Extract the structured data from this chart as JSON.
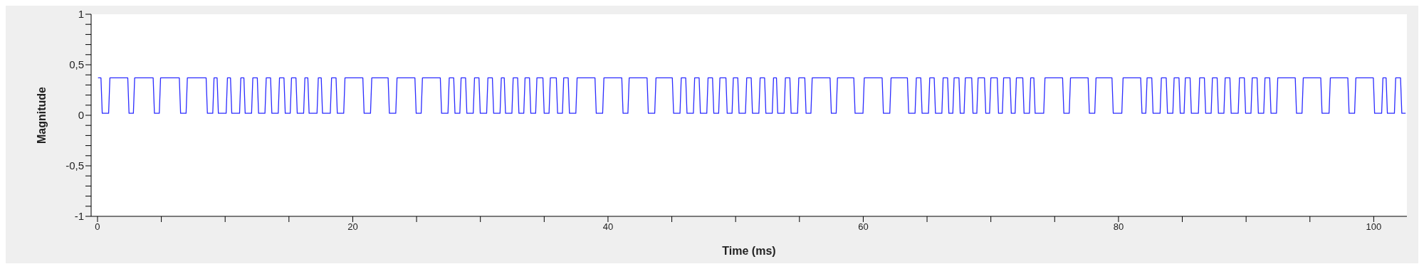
{
  "chart_data": {
    "type": "line",
    "xlabel": "Time (ms)",
    "ylabel": "Magnitude",
    "xlim": [
      -0.5,
      102.6
    ],
    "ylim": [
      -1,
      1
    ],
    "xticks": [
      0,
      {
        "value": 5,
        "label": null
      },
      {
        "value": 10,
        "label": null
      },
      {
        "value": 15,
        "label": null
      },
      20,
      {
        "value": 25,
        "label": null
      },
      {
        "value": 30,
        "label": null
      },
      {
        "value": 35,
        "label": null
      },
      40,
      {
        "value": 45,
        "label": null
      },
      {
        "value": 50,
        "label": null
      },
      {
        "value": 55,
        "label": null
      },
      60,
      {
        "value": 65,
        "label": null
      },
      {
        "value": 70,
        "label": null
      },
      {
        "value": 75,
        "label": null
      },
      80,
      {
        "value": 85,
        "label": null
      },
      {
        "value": 90,
        "label": null
      },
      {
        "value": 95,
        "label": null
      },
      100
    ],
    "yticks": [
      -1,
      {
        "value": -0.9,
        "label": null
      },
      {
        "value": -0.8,
        "label": null
      },
      {
        "value": -0.7,
        "label": null
      },
      {
        "value": -0.6,
        "label": null
      },
      {
        "value": -0.5,
        "label": "-0,5"
      },
      {
        "value": -0.4,
        "label": null
      },
      {
        "value": -0.3,
        "label": null
      },
      {
        "value": -0.2,
        "label": null
      },
      {
        "value": -0.1,
        "label": null
      },
      0,
      {
        "value": 0.1,
        "label": null
      },
      {
        "value": 0.2,
        "label": null
      },
      {
        "value": 0.3,
        "label": null
      },
      {
        "value": 0.4,
        "label": null
      },
      {
        "value": 0.5,
        "label": "0,5"
      },
      {
        "value": 0.6,
        "label": null
      },
      {
        "value": 0.7,
        "label": null
      },
      {
        "value": 0.8,
        "label": null
      },
      {
        "value": 0.9,
        "label": null
      },
      1
    ],
    "grid": false,
    "legend": false,
    "marker": "none",
    "line_style": "solid",
    "series": [
      {
        "color": "#2b2bff",
        "x": [
          0.04,
          0.27,
          0.37,
          0.87,
          0.97,
          2.37,
          2.47,
          2.81,
          2.91,
          4.36,
          4.46,
          4.84,
          4.94,
          6.41,
          6.51,
          6.94,
          7.04,
          8.51,
          8.61,
          9.03,
          9.13,
          9.37,
          9.47,
          10.08,
          10.18,
          10.42,
          10.52,
          11.13,
          11.23,
          11.47,
          11.57,
          12.07,
          12.17,
          12.52,
          12.62,
          13.12,
          13.22,
          13.56,
          13.66,
          14.16,
          14.26,
          14.61,
          14.71,
          15.1,
          15.2,
          15.55,
          15.65,
          16.15,
          16.25,
          16.48,
          16.58,
          17.2,
          17.3,
          17.53,
          17.63,
          18.24,
          18.34,
          18.69,
          18.79,
          19.29,
          19.39,
          20.79,
          20.89,
          21.39,
          21.49,
          22.77,
          22.87,
          23.37,
          23.47,
          24.87,
          24.97,
          25.36,
          25.46,
          26.86,
          26.96,
          27.46,
          27.56,
          27.91,
          28.01,
          28.39,
          28.49,
          28.84,
          28.94,
          29.44,
          29.54,
          29.89,
          29.99,
          30.49,
          30.59,
          30.94,
          31.04,
          31.54,
          31.64,
          31.87,
          31.97,
          32.47,
          32.57,
          32.92,
          33.02,
          33.4,
          33.5,
          33.85,
          33.95,
          34.33,
          34.43,
          34.9,
          35.0,
          35.38,
          35.48,
          35.95,
          36.05,
          36.43,
          36.53,
          36.88,
          36.98,
          37.48,
          37.58,
          38.98,
          39.08,
          39.58,
          39.68,
          41.08,
          41.18,
          41.56,
          41.66,
          43.06,
          43.16,
          43.66,
          43.76,
          45.04,
          45.14,
          45.64,
          45.74,
          46.09,
          46.19,
          46.69,
          46.79,
          47.14,
          47.24,
          47.74,
          47.84,
          48.19,
          48.29,
          48.67,
          48.77,
          49.24,
          49.34,
          49.72,
          49.82,
          50.17,
          50.27,
          50.77,
          50.87,
          51.22,
          51.32,
          51.82,
          51.92,
          52.27,
          52.37,
          52.87,
          52.97,
          53.2,
          53.3,
          53.8,
          53.9,
          54.25,
          54.35,
          54.85,
          54.95,
          55.42,
          55.52,
          55.9,
          56.0,
          57.4,
          57.5,
          57.88,
          57.98,
          59.26,
          59.36,
          59.98,
          60.08,
          61.48,
          61.58,
          62.08,
          62.18,
          63.46,
          63.56,
          64.06,
          64.16,
          64.51,
          64.61,
          65.11,
          65.21,
          65.56,
          65.66,
          66.16,
          66.26,
          66.61,
          66.71,
          67.02,
          67.12,
          67.5,
          67.6,
          67.9,
          68.0,
          68.5,
          68.6,
          68.9,
          69.0,
          69.5,
          69.6,
          69.9,
          70.0,
          70.5,
          70.6,
          70.9,
          71.0,
          71.5,
          71.6,
          71.9,
          72.0,
          72.5,
          72.6,
          73.02,
          73.12,
          73.37,
          73.47,
          74.14,
          74.24,
          75.62,
          75.72,
          76.14,
          76.24,
          77.62,
          77.72,
          78.14,
          78.24,
          79.49,
          79.59,
          80.26,
          80.36,
          81.74,
          81.84,
          82.14,
          82.24,
          82.61,
          82.71,
          83.26,
          83.36,
          83.74,
          83.84,
          84.26,
          84.36,
          84.74,
          84.84,
          85.14,
          85.24,
          85.61,
          85.71,
          86.26,
          86.36,
          86.73,
          86.83,
          87.26,
          87.36,
          87.73,
          87.83,
          88.26,
          88.36,
          88.73,
          88.83,
          89.38,
          89.48,
          89.86,
          89.96,
          90.38,
          90.48,
          90.86,
          90.96,
          91.38,
          91.48,
          91.85,
          91.95,
          92.38,
          92.48,
          93.85,
          93.95,
          94.38,
          94.48,
          95.85,
          95.95,
          96.5,
          96.6,
          97.97,
          98.07,
          98.5,
          98.6,
          99.97,
          100.07,
          100.62,
          100.72,
          100.97,
          101.07,
          101.62,
          101.72,
          102.1,
          102.2,
          102.5
        ],
        "values": [
          0.37,
          0.37,
          0.02,
          0.02,
          0.37,
          0.37,
          0.02,
          0.02,
          0.37,
          0.37,
          0.02,
          0.02,
          0.37,
          0.37,
          0.02,
          0.02,
          0.37,
          0.37,
          0.02,
          0.02,
          0.37,
          0.37,
          0.02,
          0.02,
          0.37,
          0.37,
          0.02,
          0.02,
          0.37,
          0.37,
          0.02,
          0.02,
          0.37,
          0.37,
          0.02,
          0.02,
          0.37,
          0.37,
          0.02,
          0.02,
          0.37,
          0.37,
          0.02,
          0.02,
          0.37,
          0.37,
          0.02,
          0.02,
          0.37,
          0.37,
          0.02,
          0.02,
          0.37,
          0.37,
          0.02,
          0.02,
          0.37,
          0.37,
          0.02,
          0.02,
          0.37,
          0.37,
          0.02,
          0.02,
          0.37,
          0.37,
          0.02,
          0.02,
          0.37,
          0.37,
          0.02,
          0.02,
          0.37,
          0.37,
          0.02,
          0.02,
          0.37,
          0.37,
          0.02,
          0.02,
          0.37,
          0.37,
          0.02,
          0.02,
          0.37,
          0.37,
          0.02,
          0.02,
          0.37,
          0.37,
          0.02,
          0.02,
          0.37,
          0.37,
          0.02,
          0.02,
          0.37,
          0.37,
          0.02,
          0.02,
          0.37,
          0.37,
          0.02,
          0.02,
          0.37,
          0.37,
          0.02,
          0.02,
          0.37,
          0.37,
          0.02,
          0.02,
          0.37,
          0.37,
          0.02,
          0.02,
          0.37,
          0.37,
          0.02,
          0.02,
          0.37,
          0.37,
          0.02,
          0.02,
          0.37,
          0.37,
          0.02,
          0.02,
          0.37,
          0.37,
          0.02,
          0.02,
          0.37,
          0.37,
          0.02,
          0.02,
          0.37,
          0.37,
          0.02,
          0.02,
          0.37,
          0.37,
          0.02,
          0.02,
          0.37,
          0.37,
          0.02,
          0.02,
          0.37,
          0.37,
          0.02,
          0.02,
          0.37,
          0.37,
          0.02,
          0.02,
          0.37,
          0.37,
          0.02,
          0.02,
          0.37,
          0.37,
          0.02,
          0.02,
          0.37,
          0.37,
          0.02,
          0.02,
          0.37,
          0.37,
          0.02,
          0.02,
          0.37,
          0.37,
          0.02,
          0.02,
          0.37,
          0.37,
          0.02,
          0.02,
          0.37,
          0.37,
          0.02,
          0.02,
          0.37,
          0.37,
          0.02,
          0.02,
          0.37,
          0.37,
          0.02,
          0.02,
          0.37,
          0.37,
          0.02,
          0.02,
          0.37,
          0.37,
          0.02,
          0.02,
          0.37,
          0.37,
          0.02,
          0.02,
          0.37,
          0.37,
          0.02,
          0.02,
          0.37,
          0.37,
          0.02,
          0.02,
          0.37,
          0.37,
          0.02,
          0.02,
          0.37,
          0.37,
          0.02,
          0.02,
          0.37,
          0.37,
          0.02,
          0.02,
          0.37,
          0.37,
          0.02,
          0.02,
          0.37,
          0.37,
          0.02,
          0.02,
          0.37,
          0.37,
          0.02,
          0.02,
          0.37,
          0.37,
          0.02,
          0.02,
          0.37,
          0.37,
          0.02,
          0.02,
          0.37,
          0.37,
          0.02,
          0.02,
          0.37,
          0.37,
          0.02,
          0.02,
          0.37,
          0.37,
          0.02,
          0.02,
          0.37,
          0.37,
          0.02,
          0.02,
          0.37,
          0.37,
          0.02,
          0.02,
          0.37,
          0.37,
          0.02,
          0.02,
          0.37,
          0.37,
          0.02,
          0.02,
          0.37,
          0.37,
          0.02,
          0.02,
          0.37,
          0.37,
          0.02,
          0.02,
          0.37,
          0.37,
          0.02,
          0.02,
          0.37,
          0.37,
          0.02,
          0.02,
          0.37,
          0.37,
          0.02,
          0.02,
          0.37,
          0.37,
          0.02,
          0.02,
          0.37,
          0.37,
          0.02,
          0.02,
          0.37,
          0.37,
          0.02,
          0.02,
          0.37,
          0.37,
          0.02,
          0.02
        ]
      }
    ]
  }
}
